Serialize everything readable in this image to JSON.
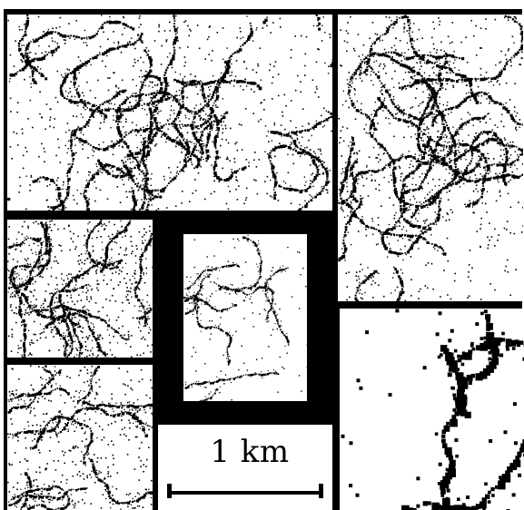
{
  "scale_bar": {
    "label": "1 km"
  },
  "colors": {
    "ink": "#000000",
    "paper": "#ffffff"
  }
}
